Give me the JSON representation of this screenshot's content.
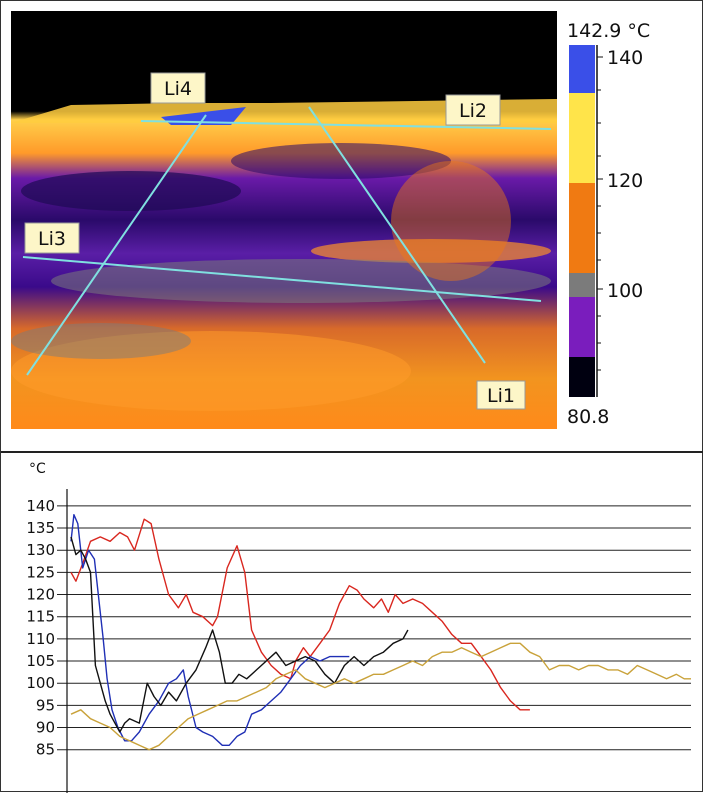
{
  "thermal_image": {
    "lines": [
      {
        "label": "Li1"
      },
      {
        "label": "Li2"
      },
      {
        "label": "Li3"
      },
      {
        "label": "Li4"
      }
    ],
    "scale": {
      "max_label": "142.9 °C",
      "min_label": "80.8",
      "tick_labels": [
        "140",
        "120",
        "100"
      ],
      "colors": {
        "top": "#3a4fe8",
        "upper": "#ffe44a",
        "mid": "#f07a12",
        "gray": "#7b7b7b",
        "low": "#7a1dbd",
        "bottom": "#000010"
      }
    }
  },
  "chart_data": {
    "type": "line",
    "unit_label": "°C",
    "y_ticks": [
      140,
      135,
      130,
      125,
      120,
      115,
      110,
      105,
      100,
      95,
      90,
      85
    ],
    "ylim": [
      82,
      142
    ],
    "xlim": [
      0,
      635
    ],
    "grid": true,
    "series": [
      {
        "color": "#d9271f",
        "points": [
          [
            0,
            125
          ],
          [
            5,
            123
          ],
          [
            12,
            127
          ],
          [
            20,
            132
          ],
          [
            30,
            133
          ],
          [
            40,
            132
          ],
          [
            50,
            134
          ],
          [
            58,
            133
          ],
          [
            65,
            130
          ],
          [
            75,
            137
          ],
          [
            82,
            136
          ],
          [
            90,
            128
          ],
          [
            100,
            120
          ],
          [
            110,
            117
          ],
          [
            118,
            120
          ],
          [
            125,
            116
          ],
          [
            135,
            115
          ],
          [
            145,
            113
          ],
          [
            150,
            115
          ],
          [
            160,
            126
          ],
          [
            170,
            131
          ],
          [
            178,
            125
          ],
          [
            185,
            112
          ],
          [
            195,
            107
          ],
          [
            205,
            104
          ],
          [
            215,
            102
          ],
          [
            225,
            101
          ],
          [
            230,
            105
          ],
          [
            238,
            108
          ],
          [
            245,
            106
          ],
          [
            255,
            109
          ],
          [
            265,
            112
          ],
          [
            275,
            118
          ],
          [
            285,
            122
          ],
          [
            293,
            121
          ],
          [
            300,
            119
          ],
          [
            310,
            117
          ],
          [
            318,
            119
          ],
          [
            325,
            116
          ],
          [
            332,
            120
          ],
          [
            340,
            118
          ],
          [
            350,
            119
          ],
          [
            360,
            118
          ],
          [
            370,
            116
          ],
          [
            380,
            114
          ],
          [
            390,
            111
          ],
          [
            400,
            109
          ],
          [
            410,
            109
          ],
          [
            420,
            106
          ],
          [
            430,
            103
          ],
          [
            440,
            99
          ],
          [
            450,
            96
          ],
          [
            460,
            94
          ],
          [
            470,
            94
          ]
        ]
      },
      {
        "color": "#1f2fb5",
        "points": [
          [
            0,
            132
          ],
          [
            3,
            138
          ],
          [
            7,
            136
          ],
          [
            12,
            126
          ],
          [
            18,
            130
          ],
          [
            24,
            128
          ],
          [
            28,
            120
          ],
          [
            33,
            110
          ],
          [
            37,
            101
          ],
          [
            42,
            94
          ],
          [
            48,
            90
          ],
          [
            55,
            87
          ],
          [
            62,
            87
          ],
          [
            70,
            89
          ],
          [
            80,
            93
          ],
          [
            90,
            96
          ],
          [
            100,
            100
          ],
          [
            108,
            101
          ],
          [
            115,
            103
          ],
          [
            120,
            97
          ],
          [
            128,
            90
          ],
          [
            135,
            89
          ],
          [
            145,
            88
          ],
          [
            155,
            86
          ],
          [
            162,
            86
          ],
          [
            170,
            88
          ],
          [
            178,
            89
          ],
          [
            185,
            93
          ],
          [
            195,
            94
          ],
          [
            205,
            96
          ],
          [
            215,
            98
          ],
          [
            225,
            101
          ],
          [
            235,
            104
          ],
          [
            245,
            106
          ],
          [
            255,
            105
          ],
          [
            265,
            106
          ],
          [
            275,
            106
          ],
          [
            285,
            106
          ]
        ]
      },
      {
        "color": "#111111",
        "points": [
          [
            0,
            133
          ],
          [
            5,
            129
          ],
          [
            10,
            130
          ],
          [
            15,
            128
          ],
          [
            20,
            125
          ],
          [
            25,
            104
          ],
          [
            30,
            100
          ],
          [
            35,
            96
          ],
          [
            40,
            93
          ],
          [
            45,
            91
          ],
          [
            50,
            89
          ],
          [
            55,
            91
          ],
          [
            60,
            92
          ],
          [
            70,
            91
          ],
          [
            78,
            100
          ],
          [
            85,
            97
          ],
          [
            92,
            95
          ],
          [
            100,
            98
          ],
          [
            108,
            96
          ],
          [
            118,
            100
          ],
          [
            128,
            103
          ],
          [
            138,
            108
          ],
          [
            145,
            112
          ],
          [
            152,
            107
          ],
          [
            158,
            100
          ],
          [
            165,
            100
          ],
          [
            172,
            102
          ],
          [
            180,
            101
          ],
          [
            190,
            103
          ],
          [
            200,
            105
          ],
          [
            210,
            107
          ],
          [
            220,
            104
          ],
          [
            230,
            105
          ],
          [
            240,
            106
          ],
          [
            250,
            105
          ],
          [
            260,
            102
          ],
          [
            270,
            100
          ],
          [
            280,
            104
          ],
          [
            290,
            106
          ],
          [
            300,
            104
          ],
          [
            310,
            106
          ],
          [
            320,
            107
          ],
          [
            330,
            109
          ],
          [
            340,
            110
          ],
          [
            345,
            112
          ]
        ]
      },
      {
        "color": "#c9a23a",
        "points": [
          [
            0,
            93
          ],
          [
            10,
            94
          ],
          [
            20,
            92
          ],
          [
            30,
            91
          ],
          [
            40,
            90
          ],
          [
            50,
            88
          ],
          [
            60,
            87
          ],
          [
            70,
            86
          ],
          [
            80,
            85
          ],
          [
            90,
            86
          ],
          [
            100,
            88
          ],
          [
            110,
            90
          ],
          [
            120,
            92
          ],
          [
            130,
            93
          ],
          [
            140,
            94
          ],
          [
            150,
            95
          ],
          [
            160,
            96
          ],
          [
            170,
            96
          ],
          [
            180,
            97
          ],
          [
            190,
            98
          ],
          [
            200,
            99
          ],
          [
            210,
            101
          ],
          [
            220,
            102
          ],
          [
            230,
            103
          ],
          [
            240,
            101
          ],
          [
            250,
            100
          ],
          [
            260,
            99
          ],
          [
            270,
            100
          ],
          [
            280,
            101
          ],
          [
            290,
            100
          ],
          [
            300,
            101
          ],
          [
            310,
            102
          ],
          [
            320,
            102
          ],
          [
            330,
            103
          ],
          [
            340,
            104
          ],
          [
            350,
            105
          ],
          [
            360,
            104
          ],
          [
            370,
            106
          ],
          [
            380,
            107
          ],
          [
            390,
            107
          ],
          [
            400,
            108
          ],
          [
            410,
            107
          ],
          [
            420,
            106
          ],
          [
            430,
            107
          ],
          [
            440,
            108
          ],
          [
            450,
            109
          ],
          [
            460,
            109
          ],
          [
            470,
            107
          ],
          [
            480,
            106
          ],
          [
            490,
            103
          ],
          [
            500,
            104
          ],
          [
            510,
            104
          ],
          [
            520,
            103
          ],
          [
            530,
            104
          ],
          [
            540,
            104
          ],
          [
            550,
            103
          ],
          [
            560,
            103
          ],
          [
            570,
            102
          ],
          [
            580,
            104
          ],
          [
            590,
            103
          ],
          [
            600,
            102
          ],
          [
            610,
            101
          ],
          [
            620,
            102
          ],
          [
            628,
            101
          ],
          [
            635,
            101
          ]
        ]
      }
    ]
  }
}
